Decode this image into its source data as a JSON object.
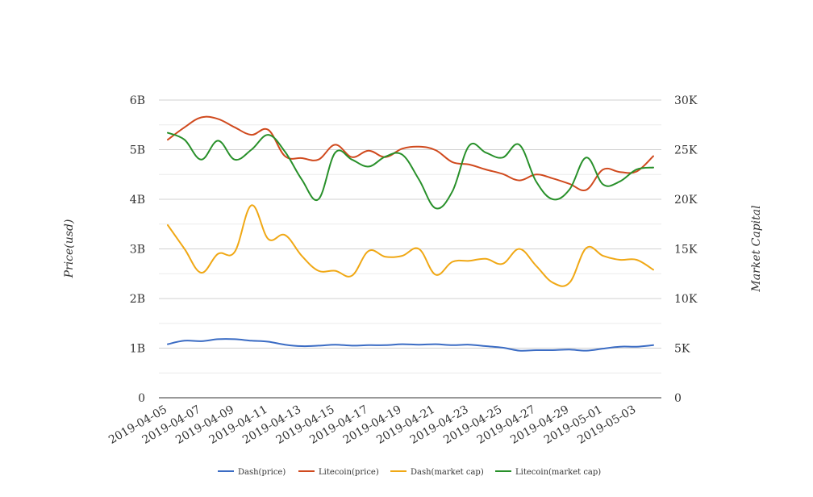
{
  "chart_data": {
    "type": "line",
    "x": [
      "2019-04-05",
      "2019-04-06",
      "2019-04-07",
      "2019-04-08",
      "2019-04-09",
      "2019-04-10",
      "2019-04-11",
      "2019-04-12",
      "2019-04-13",
      "2019-04-14",
      "2019-04-15",
      "2019-04-16",
      "2019-04-17",
      "2019-04-18",
      "2019-04-19",
      "2019-04-20",
      "2019-04-21",
      "2019-04-22",
      "2019-04-23",
      "2019-04-24",
      "2019-04-25",
      "2019-04-26",
      "2019-04-27",
      "2019-04-28",
      "2019-04-29",
      "2019-04-30",
      "2019-05-01",
      "2019-05-02",
      "2019-05-03",
      "2019-05-04"
    ],
    "x_tick_labels": [
      "2019-04-05",
      "2019-04-07",
      "2019-04-09",
      "2019-04-11",
      "2019-04-13",
      "2019-04-15",
      "2019-04-17",
      "2019-04-19",
      "2019-04-21",
      "2019-04-23",
      "2019-04-25",
      "2019-04-27",
      "2019-04-29",
      "2019-05-01",
      "2019-05-03"
    ],
    "ylabel": "Price(usd)",
    "y2label": "Market Capital",
    "ylim": [
      0,
      6000000000
    ],
    "y_ticks": [
      0,
      1000000000,
      2000000000,
      3000000000,
      4000000000,
      5000000000,
      6000000000
    ],
    "y_tick_labels": [
      "0",
      "1B",
      "2B",
      "3B",
      "4B",
      "5B",
      "6B"
    ],
    "y2lim": [
      0,
      30000
    ],
    "y2_ticks": [
      0,
      5000,
      10000,
      15000,
      20000,
      25000,
      30000
    ],
    "y2_tick_labels": [
      "0",
      "5K",
      "10K",
      "15K",
      "20K",
      "25K",
      "30K"
    ],
    "grid": true,
    "legend_position": "bottom",
    "series": [
      {
        "name": "Dash(price)",
        "axis": "left",
        "color": "#3b6cc4",
        "values": [
          1080000000,
          1150000000,
          1140000000,
          1180000000,
          1180000000,
          1150000000,
          1130000000,
          1070000000,
          1040000000,
          1050000000,
          1070000000,
          1050000000,
          1060000000,
          1060000000,
          1080000000,
          1070000000,
          1080000000,
          1060000000,
          1070000000,
          1040000000,
          1010000000,
          950000000,
          960000000,
          960000000,
          970000000,
          950000000,
          990000000,
          1030000000,
          1030000000,
          1060000000
        ]
      },
      {
        "name": "Litecoin(price)",
        "axis": "left",
        "color": "#d04a1e",
        "values": [
          5200000000,
          5450000000,
          5650000000,
          5620000000,
          5450000000,
          5300000000,
          5400000000,
          4870000000,
          4830000000,
          4800000000,
          5100000000,
          4850000000,
          4980000000,
          4850000000,
          5020000000,
          5060000000,
          4990000000,
          4750000000,
          4700000000,
          4600000000,
          4510000000,
          4380000000,
          4500000000,
          4420000000,
          4310000000,
          4190000000,
          4600000000,
          4550000000,
          4560000000,
          4870000000
        ]
      },
      {
        "name": "Dash(market cap)",
        "axis": "right",
        "color": "#f0a815",
        "values": [
          17400,
          15000,
          12600,
          14500,
          14700,
          19400,
          16000,
          16400,
          14300,
          12800,
          12800,
          12300,
          14800,
          14200,
          14300,
          15000,
          12400,
          13700,
          13800,
          14000,
          13500,
          15000,
          13300,
          11600,
          11600,
          15100,
          14300,
          13900,
          13900,
          12900
        ]
      },
      {
        "name": "Litecoin(market cap)",
        "axis": "right",
        "color": "#28902a",
        "values": [
          26700,
          26000,
          24000,
          25900,
          24000,
          25000,
          26500,
          24800,
          22000,
          20000,
          24700,
          24000,
          23300,
          24300,
          24500,
          22000,
          19100,
          20800,
          25400,
          24700,
          24200,
          25500,
          21800,
          20000,
          21000,
          24200,
          21500,
          21800,
          23000,
          23200
        ]
      }
    ]
  }
}
